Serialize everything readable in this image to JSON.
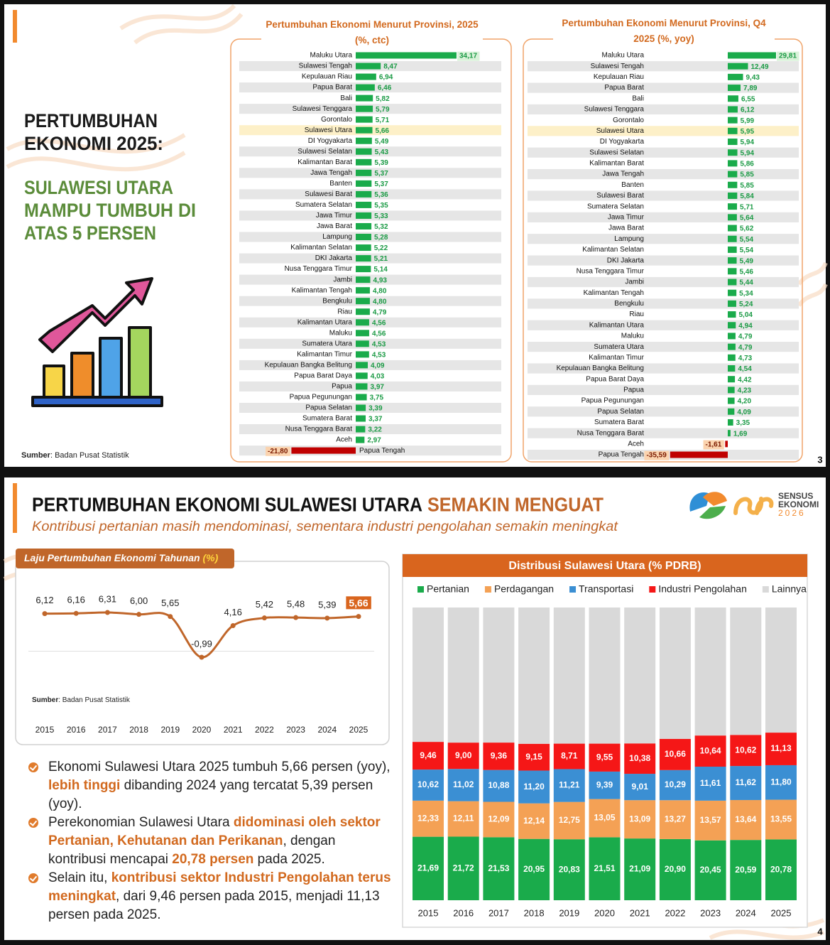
{
  "slide1": {
    "heading": [
      "PERTUMBUHAN",
      "EKONOMI 2025:"
    ],
    "subheading": [
      "SULAWESI UTARA",
      "MAMPU TUMBUH DI",
      "ATAS 5 PERSEN"
    ],
    "source_label": "Sumber",
    "source": ": Badan Pusat Statistik",
    "page": 3
  },
  "slide2": {
    "title": "PERTUMBUHAN EKONOMI SULAWESI UTARA",
    "title_highlight": "SEMAKIN MENGUAT",
    "subtitle": "Kontribusi pertanian masih mendominasi, sementara industri pengolahan semakin meningkat",
    "logo": [
      "SENSUS",
      "EKONOMI",
      "2026"
    ],
    "bullets": [
      [
        {
          "text": "Ekonomi Sulawesi Utara 2025 tumbuh 5,66 persen (yoy), "
        },
        {
          "text": "lebih tinggi",
          "bold": true
        },
        {
          "text": " dibanding 2024 yang tercatat 5,39 persen (yoy)."
        }
      ],
      [
        {
          "text": "Perekonomian Sulawesi Utara "
        },
        {
          "text": "didominasi oleh sektor Pertanian, Kehutanan dan Perikanan",
          "bold": true
        },
        {
          "text": ", dengan kontribusi mencapai "
        },
        {
          "text": "20,78 persen",
          "bold": true
        },
        {
          "text": " pada 2025."
        }
      ],
      [
        {
          "text": "Selain itu, "
        },
        {
          "text": "kontribusi sektor Industri Pengolahan terus meningkat",
          "bold": true
        },
        {
          "text": ", dari 9,46 persen pada 2015, menjadi 11,13 persen pada 2025."
        }
      ]
    ],
    "page": 4
  },
  "chart_data": [
    {
      "type": "bar",
      "orientation": "horizontal",
      "title": "Pertumbuhan Ekonomi Menurut Provinsi, 2025 (%, ctc)",
      "categories": [
        "Maluku Utara",
        "Sulawesi Tengah",
        "Kepulauan Riau",
        "Papua Barat",
        "Bali",
        "Sulawesi Tenggara",
        "Gorontalo",
        "Sulawesi Utara",
        "DI Yogyakarta",
        "Sulawesi Selatan",
        "Kalimantan Barat",
        "Jawa Tengah",
        "Banten",
        "Sulawesi Barat",
        "Sumatera Selatan",
        "Jawa Timur",
        "Jawa Barat",
        "Lampung",
        "Kalimantan Selatan",
        "DKI Jakarta",
        "Nusa Tenggara Timur",
        "Jambi",
        "Kalimantan Tengah",
        "Bengkulu",
        "Riau",
        "Kalimantan Utara",
        "Maluku",
        "Sumatera Utara",
        "Kalimantan Timur",
        "Kepulauan Bangka Belitung",
        "Papua Barat Daya",
        "Papua",
        "Papua Pegunungan",
        "Papua Selatan",
        "Sumatera Barat",
        "Nusa Tenggara Barat",
        "Aceh",
        "Papua Tengah"
      ],
      "values": [
        34.17,
        8.47,
        6.94,
        6.46,
        5.82,
        5.79,
        5.71,
        5.66,
        5.49,
        5.43,
        5.39,
        5.37,
        5.37,
        5.36,
        5.35,
        5.33,
        5.32,
        5.28,
        5.22,
        5.21,
        5.14,
        4.93,
        4.8,
        4.8,
        4.79,
        4.56,
        4.56,
        4.53,
        4.53,
        4.09,
        4.03,
        3.97,
        3.75,
        3.39,
        3.37,
        3.22,
        2.97,
        -21.8
      ],
      "value_labels": [
        "34,17",
        "8,47",
        "6,94",
        "6,46",
        "5,82",
        "5,79",
        "5,71",
        "5,66",
        "5,49",
        "5,43",
        "5,39",
        "5,37",
        "5,37",
        "5,36",
        "5,35",
        "5,33",
        "5,32",
        "5,28",
        "5,22",
        "5,21",
        "5,14",
        "4,93",
        "4,80",
        "4,80",
        "4,79",
        "4,56",
        "4,56",
        "4,53",
        "4,53",
        "4,09",
        "4,03",
        "3,97",
        "3,75",
        "3,39",
        "3,37",
        "3,22",
        "2,97",
        "-21,80"
      ],
      "color": "#1aab4b",
      "negative_color": "#c00000",
      "highlight_index": 7
    },
    {
      "type": "bar",
      "orientation": "horizontal",
      "title": "Pertumbuhan Ekonomi Menurut Provinsi, Q4 2025 (%, yoy)",
      "categories": [
        "Maluku Utara",
        "Sulawesi Tengah",
        "Kepulauan Riau",
        "Papua Barat",
        "Bali",
        "Sulawesi Tenggara",
        "Gorontalo",
        "Sulawesi Utara",
        "DI Yogyakarta",
        "Sulawesi Selatan",
        "Kalimantan Barat",
        "Jawa Tengah",
        "Banten",
        "Sulawesi Barat",
        "Sumatera Selatan",
        "Jawa Timur",
        "Jawa Barat",
        "Lampung",
        "Kalimantan Selatan",
        "DKI Jakarta",
        "Nusa Tenggara Timur",
        "Jambi",
        "Kalimantan Tengah",
        "Bengkulu",
        "Riau",
        "Kalimantan Utara",
        "Maluku",
        "Sumatera Utara",
        "Kalimantan Timur",
        "Kepulauan Bangka Belitung",
        "Papua Barat Daya",
        "Papua",
        "Papua Pegunungan",
        "Papua Selatan",
        "Sumatera Barat",
        "Nusa Tenggara Barat",
        "Aceh",
        "Papua Tengah"
      ],
      "values": [
        29.81,
        12.49,
        9.43,
        7.89,
        6.55,
        6.12,
        5.99,
        5.95,
        5.94,
        5.94,
        5.86,
        5.85,
        5.85,
        5.84,
        5.71,
        5.64,
        5.62,
        5.54,
        5.54,
        5.49,
        5.46,
        5.44,
        5.34,
        5.24,
        5.04,
        4.94,
        4.79,
        4.79,
        4.73,
        4.54,
        4.42,
        4.23,
        4.2,
        4.09,
        3.35,
        1.69,
        -1.61,
        -35.59
      ],
      "value_labels": [
        "29,81",
        "12,49",
        "9,43",
        "7,89",
        "6,55",
        "6,12",
        "5,99",
        "5,95",
        "5,94",
        "5,94",
        "5,86",
        "5,85",
        "5,85",
        "5,84",
        "5,71",
        "5,64",
        "5,62",
        "5,54",
        "5,54",
        "5,49",
        "5,46",
        "5,44",
        "5,34",
        "5,24",
        "5,04",
        "4,94",
        "4,79",
        "4,79",
        "4,73",
        "4,54",
        "4,42",
        "4,23",
        "4,20",
        "4,09",
        "3,35",
        "1,69",
        "-1,61",
        "-35,59"
      ],
      "color": "#1aab4b",
      "negative_color": "#c00000",
      "highlight_index": 7
    },
    {
      "type": "line",
      "title": "Laju Pertumbuhan Ekonomi Tahunan",
      "title_unit": "(%)",
      "categories": [
        "2015",
        "2016",
        "2017",
        "2018",
        "2019",
        "2020",
        "2021",
        "2022",
        "2023",
        "2024",
        "2025"
      ],
      "values": [
        6.12,
        6.16,
        6.31,
        6.0,
        5.65,
        -0.99,
        4.16,
        5.42,
        5.48,
        5.39,
        5.66
      ],
      "value_labels": [
        "6,12",
        "6,16",
        "6,31",
        "6,00",
        "5,65",
        "-0,99",
        "4,16",
        "5,42",
        "5,48",
        "5,39",
        "5,66"
      ],
      "color": "#c0662a",
      "highlight_index": 10,
      "source_label": "Sumber",
      "source": ": Badan Pusat Statistik"
    },
    {
      "type": "stacked_bar",
      "title": "Distribusi Sulawesi Utara (% PDRB)",
      "categories": [
        "2015",
        "2016",
        "2017",
        "2018",
        "2019",
        "2020",
        "2021",
        "2022",
        "2023",
        "2024",
        "2025"
      ],
      "legend": "top",
      "series": [
        {
          "name": "Pertanian",
          "color": "#1aab4b",
          "values": [
            21.69,
            21.72,
            21.53,
            20.95,
            20.83,
            21.51,
            21.09,
            20.9,
            20.45,
            20.59,
            20.78
          ],
          "value_labels": [
            "21,69",
            "21,72",
            "21,53",
            "20,95",
            "20,83",
            "21,51",
            "21,09",
            "20,90",
            "20,45",
            "20,59",
            "20,78"
          ]
        },
        {
          "name": "Perdagangan",
          "color": "#f4a155",
          "values": [
            12.33,
            12.11,
            12.09,
            12.14,
            12.75,
            13.05,
            13.09,
            13.27,
            13.57,
            13.64,
            13.55
          ],
          "value_labels": [
            "12,33",
            "12,11",
            "12,09",
            "12,14",
            "12,75",
            "13,05",
            "13,09",
            "13,27",
            "13,57",
            "13,64",
            "13,55"
          ]
        },
        {
          "name": "Transportasi",
          "color": "#3b8fd3",
          "values": [
            10.62,
            11.02,
            10.88,
            11.2,
            11.21,
            9.39,
            9.01,
            10.29,
            11.61,
            11.62,
            11.8
          ],
          "value_labels": [
            "10,62",
            "11,02",
            "10,88",
            "11,20",
            "11,21",
            "9,39",
            "9,01",
            "10,29",
            "11,61",
            "11,62",
            "11,80"
          ]
        },
        {
          "name": "Industri Pengolahan",
          "color": "#f51717",
          "values": [
            9.46,
            9.0,
            9.36,
            9.15,
            8.71,
            9.55,
            10.38,
            10.66,
            10.64,
            10.62,
            11.13
          ],
          "value_labels": [
            "9,46",
            "9,00",
            "9,36",
            "9,15",
            "8,71",
            "9,55",
            "10,38",
            "10,66",
            "10,64",
            "10,62",
            "11,13"
          ]
        },
        {
          "name": "Lainnya",
          "color": "#d9d9d9",
          "values": [
            45.9,
            46.15,
            46.14,
            46.56,
            46.5,
            46.5,
            46.43,
            44.88,
            43.73,
            43.53,
            42.74
          ]
        }
      ]
    }
  ]
}
